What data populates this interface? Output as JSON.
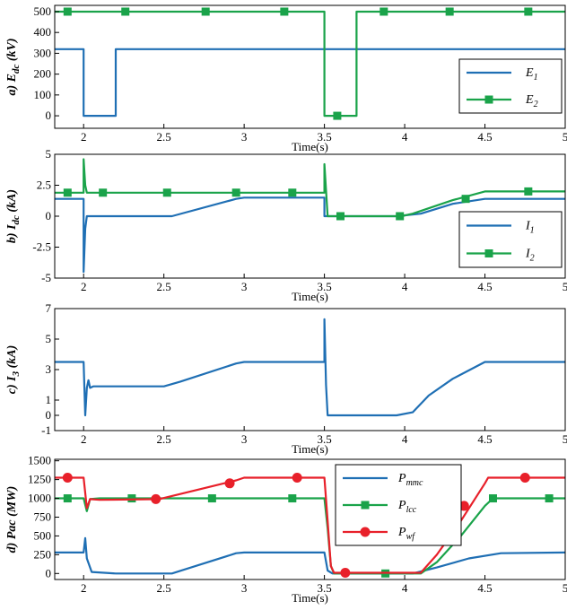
{
  "colors": {
    "blue": "#1f6fb4",
    "green": "#1aa34a",
    "red": "#e8202a"
  },
  "chart_data": [
    {
      "type": "line",
      "panel": "a",
      "ylabel_prefix": "a) ",
      "ylabel_main": "E",
      "ylabel_sub": "dc",
      "ylabel_unit": " (kV)",
      "xlabel": "Time(s)",
      "xlim": [
        1.82,
        5
      ],
      "ylim": [
        -60,
        530
      ],
      "xticks": [
        2,
        2.5,
        3,
        3.5,
        4,
        4.5,
        5
      ],
      "xtick_labels": [
        "2",
        "2.5",
        "3",
        "3.5",
        "4",
        "4.5",
        "5"
      ],
      "yticks": [
        0,
        100,
        200,
        300,
        400,
        500
      ],
      "ytick_labels": [
        "0",
        "100",
        "200",
        "300",
        "400",
        "500"
      ],
      "legend_position": "lower-right",
      "series": [
        {
          "name_main": "E",
          "name_sub": "1",
          "color": "blue",
          "marker": "none",
          "x": [
            1.82,
            2.0,
            2.0,
            2.2,
            2.2,
            5.0
          ],
          "y": [
            320,
            320,
            0,
            0,
            320,
            320
          ]
        },
        {
          "name_main": "E",
          "name_sub": "2",
          "color": "green",
          "marker": "square",
          "x": [
            1.82,
            3.5,
            3.5,
            3.7,
            3.7,
            5.0
          ],
          "y": [
            500,
            500,
            0,
            0,
            500,
            500
          ],
          "markers": [
            [
              1.9,
              500
            ],
            [
              2.26,
              500
            ],
            [
              2.76,
              500
            ],
            [
              3.25,
              500
            ],
            [
              3.58,
              0
            ],
            [
              3.87,
              500
            ],
            [
              4.28,
              500
            ],
            [
              4.77,
              500
            ]
          ]
        }
      ]
    },
    {
      "type": "line",
      "panel": "b",
      "ylabel_prefix": "b) ",
      "ylabel_main": "I",
      "ylabel_sub": "dc",
      "ylabel_unit": " (kA)",
      "xlabel": "Time(s)",
      "xlim": [
        1.82,
        5
      ],
      "ylim": [
        -5,
        5
      ],
      "xticks": [
        2,
        2.5,
        3,
        3.5,
        4,
        4.5,
        5
      ],
      "xtick_labels": [
        "2",
        "2.5",
        "3",
        "3.5",
        "4",
        "4.5",
        "5"
      ],
      "yticks": [
        -5,
        -2.5,
        0,
        2.5,
        5
      ],
      "ytick_labels": [
        "-5",
        "-2.5",
        "0",
        "2.5",
        "5"
      ],
      "legend_position": "lower-right",
      "series": [
        {
          "name_main": "I",
          "name_sub": "1",
          "color": "blue",
          "marker": "none",
          "x": [
            1.82,
            2.0,
            2.0,
            2.01,
            2.02,
            2.05,
            2.2,
            2.55,
            2.95,
            3.0,
            3.5,
            3.5,
            3.52,
            3.7,
            3.95,
            4.1,
            4.3,
            4.5,
            5.0
          ],
          "y": [
            1.4,
            1.4,
            -4.5,
            -1.0,
            0.0,
            0.0,
            0.0,
            0.0,
            1.4,
            1.5,
            1.5,
            0.0,
            0.0,
            0.0,
            0.0,
            0.2,
            1.0,
            1.4,
            1.4
          ]
        },
        {
          "name_main": "I",
          "name_sub": "2",
          "color": "green",
          "marker": "square",
          "x": [
            1.82,
            2.0,
            2.0,
            2.01,
            2.02,
            2.05,
            3.5,
            3.5,
            3.52,
            3.7,
            3.98,
            4.05,
            4.3,
            4.5,
            5.0
          ],
          "y": [
            1.9,
            1.9,
            4.6,
            2.5,
            1.9,
            1.9,
            1.9,
            4.2,
            0.0,
            0.0,
            0.0,
            0.2,
            1.3,
            2.0,
            2.0
          ],
          "markers": [
            [
              1.9,
              1.9
            ],
            [
              2.12,
              1.9
            ],
            [
              2.52,
              1.9
            ],
            [
              2.95,
              1.9
            ],
            [
              3.3,
              1.9
            ],
            [
              3.6,
              0
            ],
            [
              3.97,
              0
            ],
            [
              4.38,
              1.4
            ],
            [
              4.77,
              2.0
            ]
          ]
        }
      ]
    },
    {
      "type": "line",
      "panel": "c",
      "ylabel_prefix": "c) ",
      "ylabel_main": "I",
      "ylabel_sub": "3",
      "ylabel_unit": " (kA)",
      "xlabel": "Time(s)",
      "xlim": [
        1.82,
        5
      ],
      "ylim": [
        -1,
        7
      ],
      "xticks": [
        2,
        2.5,
        3,
        3.5,
        4,
        4.5,
        5
      ],
      "xtick_labels": [
        "2",
        "2.5",
        "3",
        "3.5",
        "4",
        "4.5",
        "5"
      ],
      "yticks": [
        -1,
        0,
        1,
        3,
        5,
        7
      ],
      "ytick_labels": [
        "-1",
        "0",
        "1",
        "3",
        "5",
        "7"
      ],
      "legend_position": "none",
      "series": [
        {
          "name_main": "I",
          "name_sub": "3",
          "color": "blue",
          "marker": "none",
          "x": [
            1.82,
            2.0,
            2.01,
            2.02,
            2.03,
            2.04,
            2.06,
            2.5,
            2.6,
            2.95,
            3.0,
            3.5,
            3.5,
            3.51,
            3.52,
            3.95,
            4.05,
            4.15,
            4.3,
            4.5,
            5.0
          ],
          "y": [
            3.5,
            3.5,
            0.0,
            1.8,
            2.3,
            1.8,
            1.9,
            1.9,
            2.2,
            3.4,
            3.5,
            3.5,
            6.3,
            2.0,
            0.0,
            0.0,
            0.2,
            1.3,
            2.4,
            3.5,
            3.5
          ]
        }
      ]
    },
    {
      "type": "line",
      "panel": "d",
      "ylabel_prefix": "d) ",
      "ylabel_main": "Pac",
      "ylabel_sub": "",
      "ylabel_unit": " (MW)",
      "xlabel": "Time(s)",
      "xlim": [
        1.82,
        5
      ],
      "ylim": [
        -80,
        1520
      ],
      "xticks": [
        2,
        2.5,
        3,
        3.5,
        4,
        4.5,
        5
      ],
      "xtick_labels": [
        "2",
        "2.5",
        "3",
        "3.5",
        "4",
        "4.5",
        "5"
      ],
      "yticks": [
        0,
        250,
        500,
        750,
        1000,
        1250,
        1500
      ],
      "ytick_labels": [
        "0",
        "250",
        "500",
        "750",
        "1000",
        "1250",
        "1500"
      ],
      "legend_position": "top-right",
      "series": [
        {
          "name_main": "P",
          "name_sub": "mmc",
          "color": "blue",
          "marker": "none",
          "x": [
            1.82,
            2.0,
            2.01,
            2.02,
            2.05,
            2.2,
            2.55,
            2.95,
            3.0,
            3.5,
            3.52,
            3.55,
            4.05,
            4.2,
            4.4,
            4.6,
            5.0
          ],
          "y": [
            280,
            280,
            470,
            200,
            20,
            0,
            0,
            270,
            280,
            280,
            40,
            0,
            0,
            80,
            200,
            270,
            280
          ]
        },
        {
          "name_main": "P",
          "name_sub": "lcc",
          "color": "green",
          "marker": "square",
          "x": [
            1.82,
            2.0,
            2.02,
            2.04,
            2.1,
            3.5,
            3.52,
            3.54,
            3.56,
            4.1,
            4.2,
            4.35,
            4.5,
            4.55,
            5.0
          ],
          "y": [
            1000,
            1000,
            830,
            990,
            1000,
            1000,
            600,
            100,
            0,
            0,
            150,
            500,
            900,
            1000,
            1000
          ],
          "markers": [
            [
              1.9,
              1000
            ],
            [
              2.3,
              1000
            ],
            [
              2.8,
              1000
            ],
            [
              3.3,
              1000
            ],
            [
              3.88,
              0
            ],
            [
              4.32,
              590
            ],
            [
              4.55,
              1000
            ],
            [
              4.9,
              1000
            ]
          ]
        },
        {
          "name_main": "P",
          "name_sub": "wf",
          "color": "red",
          "marker": "circle",
          "x": [
            1.82,
            2.0,
            2.02,
            2.04,
            2.1,
            2.47,
            2.95,
            3.0,
            3.5,
            3.52,
            3.54,
            3.56,
            4.1,
            4.2,
            4.35,
            4.5,
            4.52,
            5.0
          ],
          "y": [
            1275,
            1275,
            870,
            990,
            980,
            990,
            1240,
            1275,
            1275,
            700,
            100,
            10,
            10,
            250,
            700,
            1200,
            1275,
            1275
          ],
          "markers": [
            [
              1.9,
              1275
            ],
            [
              2.45,
              990
            ],
            [
              2.91,
              1200
            ],
            [
              3.33,
              1275
            ],
            [
              3.63,
              10
            ],
            [
              4.37,
              900
            ],
            [
              4.75,
              1275
            ]
          ]
        }
      ]
    }
  ]
}
